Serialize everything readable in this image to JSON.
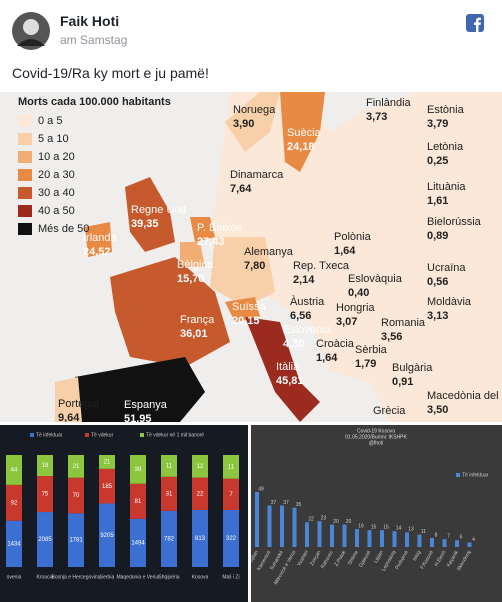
{
  "post": {
    "author": "Faik Hoti",
    "time": "am Samstag",
    "text": "Covid-19/Ra ky mort e ju pamë!"
  },
  "map": {
    "legend": {
      "title": "Morts cada 100.000 habitants",
      "items": [
        {
          "label": "0 a 5",
          "color": "#fbe8d8"
        },
        {
          "label": "5 a 10",
          "color": "#f7cfa8"
        },
        {
          "label": "10 a 20",
          "color": "#f2ad74"
        },
        {
          "label": "20 a 30",
          "color": "#e88a43"
        },
        {
          "label": "30 a 40",
          "color": "#c65a2c"
        },
        {
          "label": "40 a 50",
          "color": "#9b2b1f"
        },
        {
          "label": "Més de 50",
          "color": "#111111"
        }
      ]
    },
    "countries": [
      {
        "name": "Noruega",
        "value": "3,90"
      },
      {
        "name": "Finlàndia",
        "value": "3,73"
      },
      {
        "name": "Estònia",
        "value": "3,79"
      },
      {
        "name": "Letònia",
        "value": "0,25"
      },
      {
        "name": "Suècia",
        "value": "24,18"
      },
      {
        "name": "Dinamarca",
        "value": "7,64"
      },
      {
        "name": "Lituània",
        "value": "1,61"
      },
      {
        "name": "Regne Unit",
        "value": "39,35"
      },
      {
        "name": "Irlanda",
        "value": "24,52"
      },
      {
        "name": "P. Baixos",
        "value": "27,43"
      },
      {
        "name": "Polònia",
        "value": "1,64"
      },
      {
        "name": "Bielorússia",
        "value": "0,89"
      },
      {
        "name": "Alemanya",
        "value": "7,80"
      },
      {
        "name": "Rep. Txeca",
        "value": "2,14"
      },
      {
        "name": "Bèlgica",
        "value": "15,70"
      },
      {
        "name": "Ucraïna",
        "value": "0,56"
      },
      {
        "name": "Eslovàquia",
        "value": "0,40"
      },
      {
        "name": "Àustria",
        "value": "6,56"
      },
      {
        "name": "Hongria",
        "value": "3,07"
      },
      {
        "name": "Moldàvia",
        "value": "3,13"
      },
      {
        "name": "Suïssa",
        "value": "20,15"
      },
      {
        "name": "França",
        "value": "36,01"
      },
      {
        "name": "Romania",
        "value": "3,56"
      },
      {
        "name": "Eslovènia",
        "value": "4,30"
      },
      {
        "name": "Croàcia",
        "value": "1,64"
      },
      {
        "name": "Sèrbia",
        "value": "1,79"
      },
      {
        "name": "Itàlia",
        "value": "45,81"
      },
      {
        "name": "Bulgària",
        "value": "0,91"
      },
      {
        "name": "Portugal",
        "value": "9,64"
      },
      {
        "name": "Espanya",
        "value": "51,95"
      },
      {
        "name": "Macedònia del Nord",
        "value": "3,50"
      },
      {
        "name": "Grècia"
      }
    ]
  },
  "chart_data": [
    {
      "type": "stacked_bar",
      "categories": [
        "ovenia",
        "Kroacia",
        "Bosnja e Hercegovina",
        "Serbia",
        "Maqedonia e Veriut",
        "Shqipëria",
        "Kosova",
        "Mali i Zi"
      ],
      "series": [
        {
          "name": "Të infektuar",
          "color": "#3b6fd1",
          "values": [
            1434,
            2085,
            1781,
            9205,
            1494,
            782,
            813,
            322
          ]
        },
        {
          "name": "Të vdekur",
          "color": "#c9382c",
          "values": [
            92,
            75,
            70,
            185,
            81,
            31,
            22,
            7
          ]
        },
        {
          "name": "Të vdekur në 1 mil banorë",
          "color": "#8cc63f",
          "values": [
            44,
            18,
            21,
            21,
            39,
            11,
            12,
            11
          ]
        }
      ]
    },
    {
      "type": "bar",
      "title": "Covid-19 Kosova",
      "subtitle": "01.05.2020/Burimi: IKSHPK",
      "annotation": "@fhoti",
      "categories": [
        "Gjilan",
        "Kamenicë",
        "Suharekë",
        "Mitrovicë e Veriut",
        "Vushtrri",
        "Zveçan",
        "Rahovec",
        "Z.Potok",
        "Shtime",
        "Gjakovë",
        "Lipjan",
        "Leposaviq",
        "Podujevë",
        "Istog",
        "F.Kosovë",
        "H.Elezit",
        "Kaçanik",
        "Skenderaj"
      ],
      "series": [
        {
          "name": "Të infektuar",
          "color": "#4a86d8",
          "values": [
            49,
            37,
            37,
            35,
            22,
            23,
            20,
            20,
            16,
            15,
            15,
            14,
            13,
            11,
            8,
            7,
            6,
            4
          ]
        }
      ]
    }
  ]
}
